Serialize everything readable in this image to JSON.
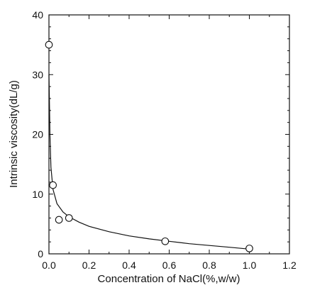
{
  "chart_data": {
    "type": "scatter",
    "xlabel": "Concentration of NaCl(%,w/w)",
    "ylabel": "Intrinsic viscosity(dL/g)",
    "xlim": [
      0,
      1.2
    ],
    "ylim": [
      0,
      40
    ],
    "x_ticks": [
      "0.0",
      "0.2",
      "0.4",
      "0.6",
      "0.8",
      "1.0",
      "1.2"
    ],
    "y_ticks": [
      "0",
      "10",
      "20",
      "30",
      "40"
    ],
    "grid": false,
    "legend": "none",
    "series": [
      {
        "marker": "open-circle",
        "points": [
          {
            "x": 0.0,
            "y": 35.0
          },
          {
            "x": 0.02,
            "y": 11.5
          },
          {
            "x": 0.05,
            "y": 5.7
          },
          {
            "x": 0.1,
            "y": 6.0
          },
          {
            "x": 0.58,
            "y": 2.1
          },
          {
            "x": 1.0,
            "y": 0.9
          }
        ]
      }
    ],
    "fit_curve": {
      "style": "solid",
      "points": [
        {
          "x": 0.0,
          "y": 30.0
        },
        {
          "x": 0.002,
          "y": 26.0
        },
        {
          "x": 0.005,
          "y": 20.0
        },
        {
          "x": 0.01,
          "y": 14.5
        },
        {
          "x": 0.02,
          "y": 10.8
        },
        {
          "x": 0.04,
          "y": 8.4
        },
        {
          "x": 0.07,
          "y": 7.0
        },
        {
          "x": 0.1,
          "y": 6.2
        },
        {
          "x": 0.15,
          "y": 5.3
        },
        {
          "x": 0.2,
          "y": 4.6
        },
        {
          "x": 0.3,
          "y": 3.7
        },
        {
          "x": 0.4,
          "y": 3.0
        },
        {
          "x": 0.5,
          "y": 2.5
        },
        {
          "x": 0.6,
          "y": 2.1
        },
        {
          "x": 0.7,
          "y": 1.7
        },
        {
          "x": 0.8,
          "y": 1.4
        },
        {
          "x": 0.9,
          "y": 1.1
        },
        {
          "x": 1.0,
          "y": 0.8
        }
      ]
    }
  }
}
